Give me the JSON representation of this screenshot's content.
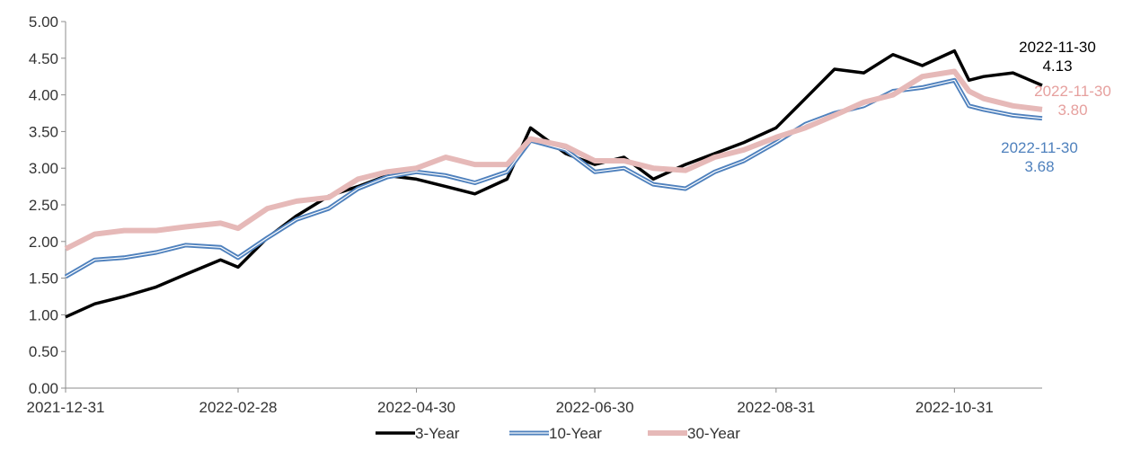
{
  "chart_data": {
    "type": "line",
    "title": "",
    "xlabel": "",
    "ylabel": "",
    "ylim": [
      0,
      5
    ],
    "y_ticks": [
      "0.00",
      "0.50",
      "1.00",
      "1.50",
      "2.00",
      "2.50",
      "3.00",
      "3.50",
      "4.00",
      "4.50",
      "5.00"
    ],
    "x_tick_labels": [
      "2021-12-31",
      "2022-02-28",
      "2022-04-30",
      "2022-06-30",
      "2022-08-31",
      "2022-10-31"
    ],
    "x_tick_dates": [
      "2021-12-31",
      "2022-02-28",
      "2022-04-30",
      "2022-06-30",
      "2022-08-31",
      "2022-10-31"
    ],
    "xlim": [
      "2021-12-31",
      "2022-11-30"
    ],
    "grid": false,
    "legend": "bottom-center",
    "colors": {
      "three_year": "#000000",
      "ten_year": "#4f81bd",
      "thirty_year": "#e6b9b8"
    },
    "series": [
      {
        "name": "3-Year",
        "x": [
          "2021-12-31",
          "2022-01-10",
          "2022-01-20",
          "2022-01-31",
          "2022-02-10",
          "2022-02-22",
          "2022-02-28",
          "2022-03-10",
          "2022-03-20",
          "2022-03-31",
          "2022-04-10",
          "2022-04-20",
          "2022-04-30",
          "2022-05-10",
          "2022-05-20",
          "2022-05-31",
          "2022-06-08",
          "2022-06-20",
          "2022-06-30",
          "2022-07-10",
          "2022-07-20",
          "2022-07-31",
          "2022-08-10",
          "2022-08-20",
          "2022-08-31",
          "2022-09-10",
          "2022-09-20",
          "2022-09-30",
          "2022-10-10",
          "2022-10-20",
          "2022-10-31",
          "2022-11-05",
          "2022-11-10",
          "2022-11-20",
          "2022-11-30"
        ],
        "values": [
          0.97,
          1.15,
          1.25,
          1.38,
          1.55,
          1.75,
          1.65,
          2.05,
          2.35,
          2.62,
          2.75,
          2.9,
          2.85,
          2.75,
          2.65,
          2.85,
          3.55,
          3.2,
          3.05,
          3.15,
          2.85,
          3.05,
          3.2,
          3.35,
          3.55,
          3.95,
          4.35,
          4.3,
          4.55,
          4.4,
          4.6,
          4.2,
          4.25,
          4.3,
          4.13
        ]
      },
      {
        "name": "10-Year",
        "x": [
          "2021-12-31",
          "2022-01-10",
          "2022-01-20",
          "2022-01-31",
          "2022-02-10",
          "2022-02-22",
          "2022-02-28",
          "2022-03-10",
          "2022-03-20",
          "2022-03-31",
          "2022-04-10",
          "2022-04-20",
          "2022-04-30",
          "2022-05-10",
          "2022-05-20",
          "2022-05-31",
          "2022-06-08",
          "2022-06-20",
          "2022-06-30",
          "2022-07-10",
          "2022-07-20",
          "2022-07-31",
          "2022-08-10",
          "2022-08-20",
          "2022-08-31",
          "2022-09-10",
          "2022-09-20",
          "2022-09-30",
          "2022-10-10",
          "2022-10-20",
          "2022-10-31",
          "2022-11-05",
          "2022-11-10",
          "2022-11-20",
          "2022-11-30"
        ],
        "values": [
          1.52,
          1.75,
          1.78,
          1.85,
          1.95,
          1.92,
          1.78,
          2.05,
          2.3,
          2.45,
          2.72,
          2.88,
          2.95,
          2.9,
          2.8,
          2.95,
          3.38,
          3.25,
          2.95,
          3.0,
          2.78,
          2.72,
          2.95,
          3.1,
          3.35,
          3.6,
          3.75,
          3.85,
          4.05,
          4.1,
          4.2,
          3.85,
          3.8,
          3.72,
          3.68
        ]
      },
      {
        "name": "30-Year",
        "x": [
          "2021-12-31",
          "2022-01-10",
          "2022-01-20",
          "2022-01-31",
          "2022-02-10",
          "2022-02-22",
          "2022-02-28",
          "2022-03-10",
          "2022-03-20",
          "2022-03-31",
          "2022-04-10",
          "2022-04-20",
          "2022-04-30",
          "2022-05-10",
          "2022-05-20",
          "2022-05-31",
          "2022-06-08",
          "2022-06-20",
          "2022-06-30",
          "2022-07-10",
          "2022-07-20",
          "2022-07-31",
          "2022-08-10",
          "2022-08-20",
          "2022-08-31",
          "2022-09-10",
          "2022-09-20",
          "2022-09-30",
          "2022-10-10",
          "2022-10-20",
          "2022-10-31",
          "2022-11-05",
          "2022-11-10",
          "2022-11-20",
          "2022-11-30"
        ],
        "values": [
          1.9,
          2.1,
          2.15,
          2.15,
          2.2,
          2.25,
          2.18,
          2.45,
          2.55,
          2.6,
          2.85,
          2.95,
          3.0,
          3.15,
          3.05,
          3.05,
          3.4,
          3.3,
          3.1,
          3.1,
          3.0,
          2.97,
          3.15,
          3.25,
          3.42,
          3.55,
          3.72,
          3.9,
          4.0,
          4.25,
          4.32,
          4.05,
          3.95,
          3.85,
          3.8
        ]
      }
    ],
    "annotations": [
      {
        "series": "3-Year",
        "date": "2022-11-30",
        "value": "4.13",
        "color": "#000000"
      },
      {
        "series": "30-Year",
        "date": "2022-11-30",
        "value": "3.80",
        "color": "#e6a09e"
      },
      {
        "series": "10-Year",
        "date": "2022-11-30",
        "value": "3.68",
        "color": "#4f81bd"
      }
    ]
  }
}
